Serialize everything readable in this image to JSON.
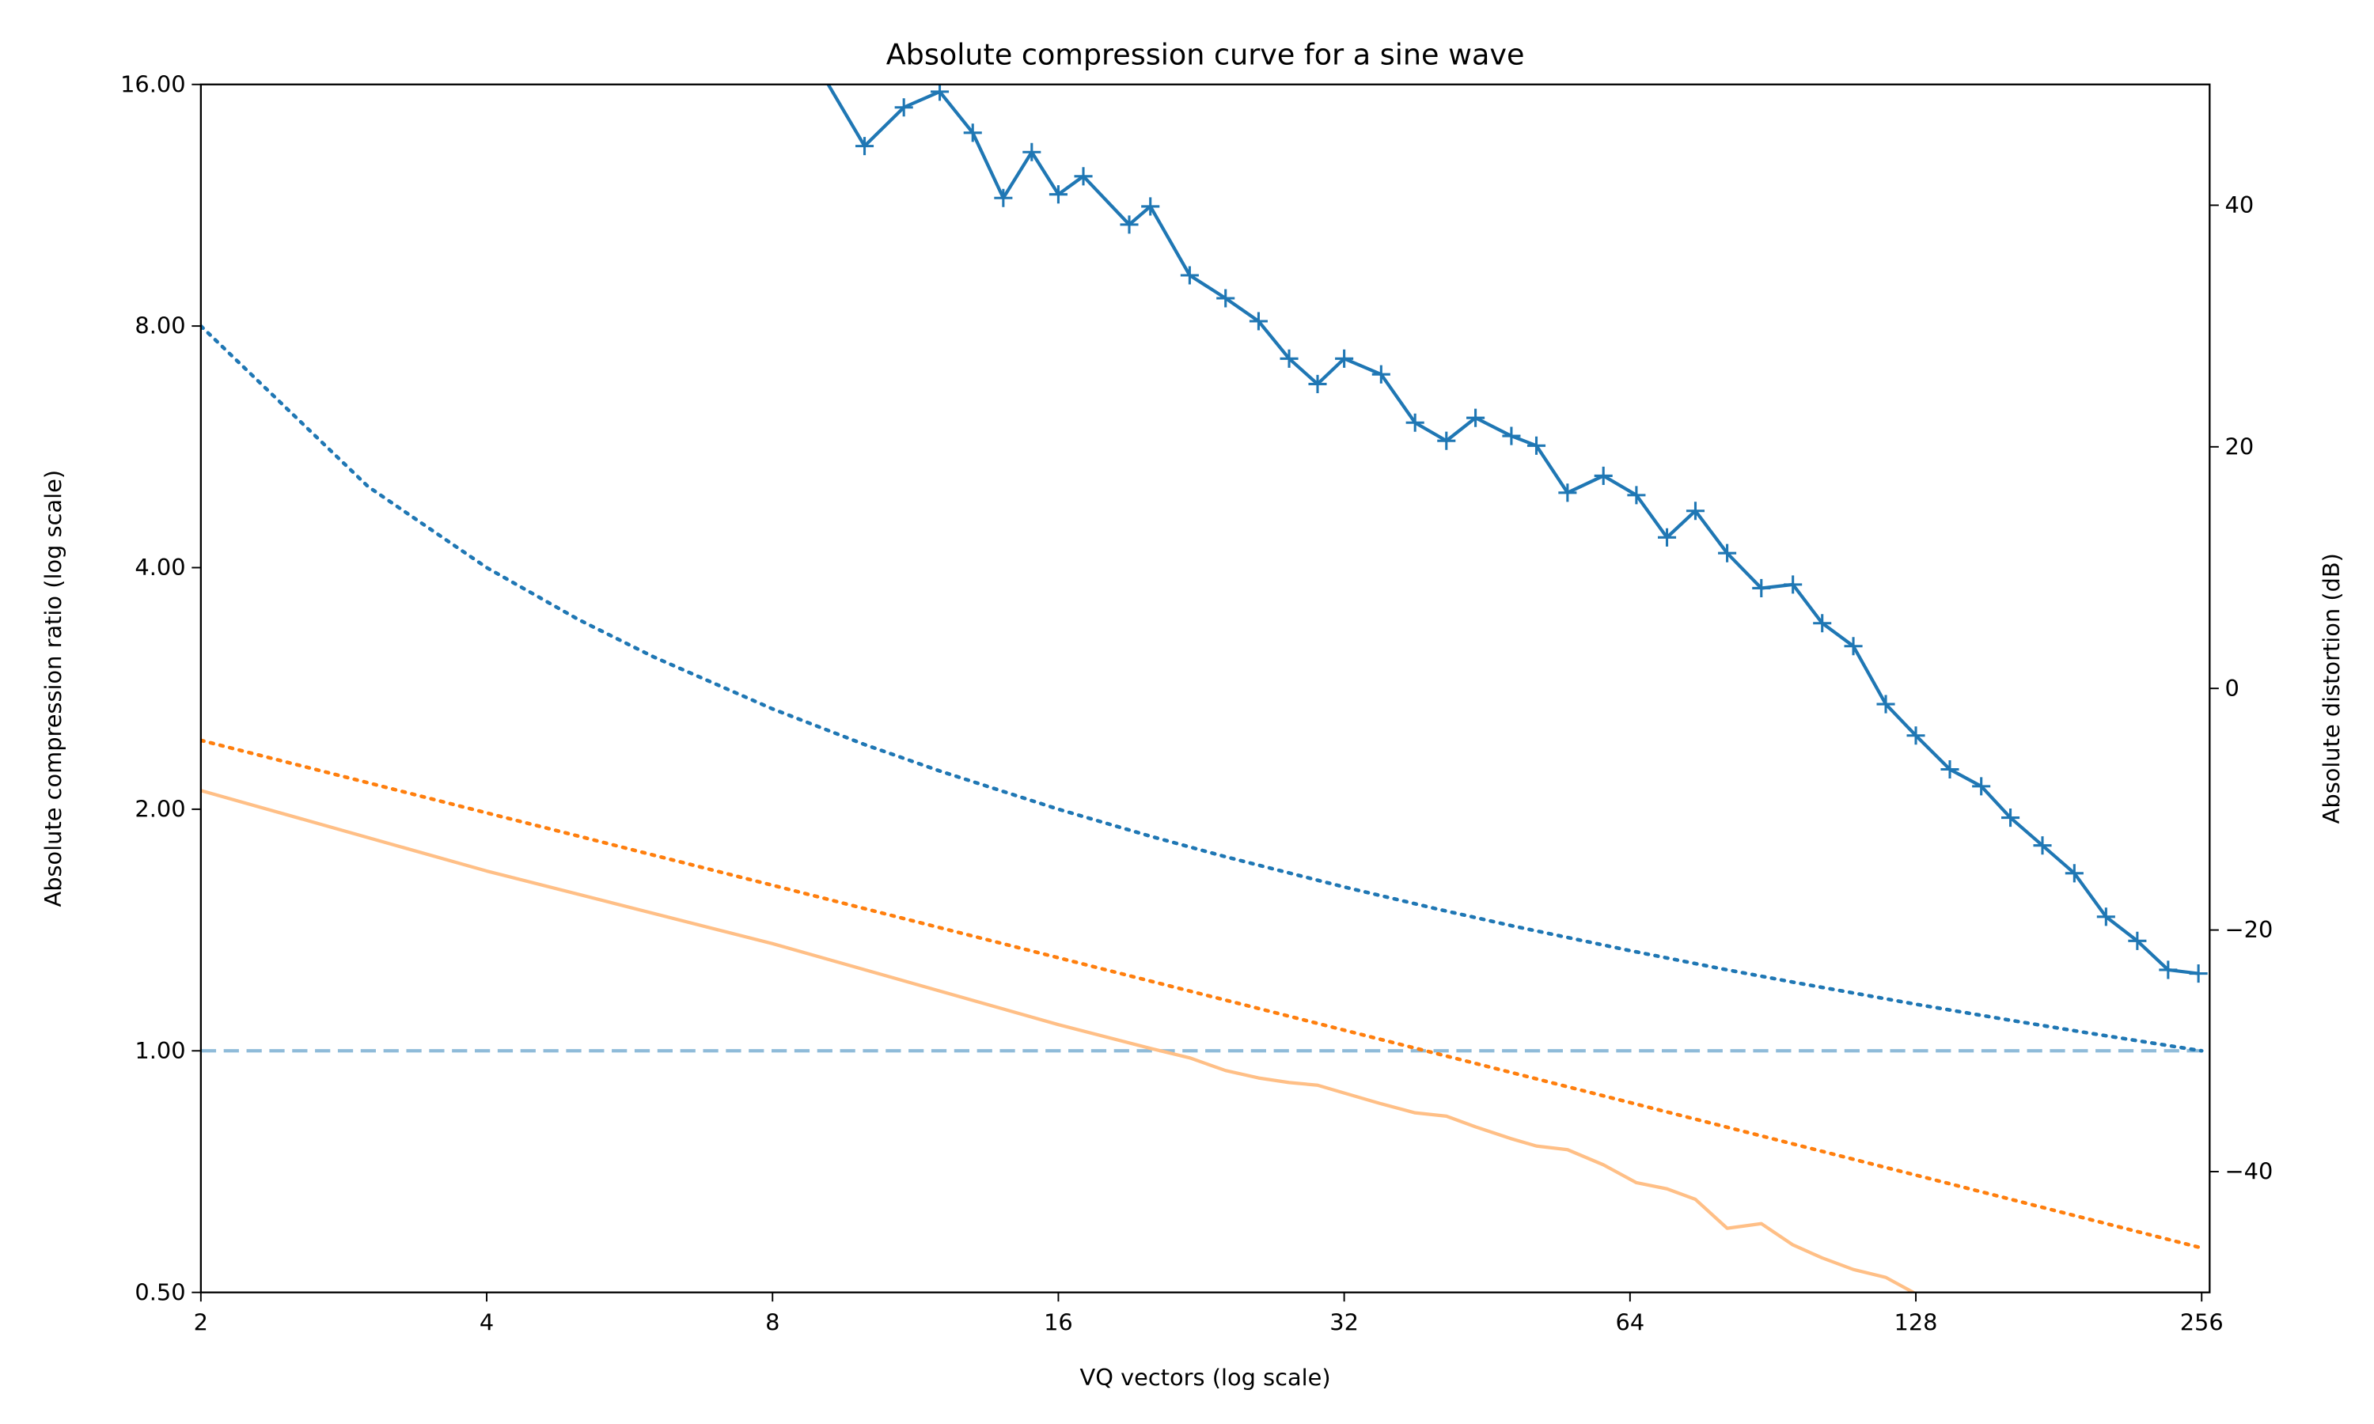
{
  "chart_data": {
    "type": "line",
    "title": "Absolute compression curve  for a sine wave",
    "xlabel": "VQ vectors (log scale)",
    "ylabel": "Absolute compression ratio (log scale)",
    "y2label": "Absolute distortion (dB)",
    "xscale": "log2",
    "yscale": "log2",
    "xlim": [
      2,
      261
    ],
    "xticks": [
      2,
      4,
      8,
      16,
      32,
      64,
      128,
      256
    ],
    "ylim": [
      0.5,
      16
    ],
    "yticks": [
      {
        "value": 0.5,
        "label": "0.50"
      },
      {
        "value": 1,
        "label": "1.00"
      },
      {
        "value": 2,
        "label": "2.00"
      },
      {
        "value": 4,
        "label": "4.00"
      },
      {
        "value": 8,
        "label": "8.00"
      },
      {
        "value": 16,
        "label": "16.00"
      }
    ],
    "y2lim": [
      -50,
      50
    ],
    "y2ticks": [
      {
        "value": -40,
        "label": "−40"
      },
      {
        "value": -20,
        "label": "−20"
      },
      0,
      20,
      40
    ],
    "hline": {
      "value": 1,
      "color": "#8fbbd9",
      "style": "dashed"
    },
    "series": [
      {
        "color": "#1f77b4",
        "style": "solid",
        "marker": "plus",
        "axis": "y2",
        "x": [
          9,
          10,
          11,
          12,
          13,
          14,
          15,
          16,
          17,
          19,
          20,
          22,
          24,
          26,
          28,
          30,
          32,
          35,
          38,
          41,
          44,
          48,
          51,
          55,
          60,
          65,
          70,
          75,
          81,
          88,
          95,
          102,
          110,
          119,
          128,
          139,
          150,
          161,
          174,
          188,
          203,
          219,
          236,
          254
        ],
        "values": [
          51,
          44.9,
          48.1,
          49.4,
          46.0,
          40.6,
          44.4,
          40.9,
          42.4,
          38.4,
          39.9,
          34.2,
          32.3,
          30.4,
          27.3,
          25.2,
          27.3,
          26.0,
          22.0,
          20.5,
          22.4,
          20.9,
          20.1,
          16.2,
          17.6,
          16.0,
          12.5,
          14.7,
          11.2,
          8.3,
          8.6,
          5.4,
          3.5,
          -1.3,
          -3.9,
          -6.7,
          -8.1,
          -10.7,
          -13.0,
          -15.3,
          -18.9,
          -20.9,
          -23.3,
          -23.6
        ]
      },
      {
        "color": "#1f77b4",
        "style": "dotted",
        "axis": "y",
        "x": [
          2,
          3,
          4,
          5,
          6,
          8,
          10,
          12,
          16,
          20,
          24,
          32,
          40,
          48,
          64,
          80,
          96,
          128,
          160,
          192,
          256
        ],
        "values": [
          8,
          5.047,
          4,
          3.445,
          3.095,
          2.667,
          2.408,
          2.232,
          2,
          1.851,
          1.745,
          1.6,
          1.503,
          1.432,
          1.333,
          1.265,
          1.215,
          1.143,
          1.093,
          1.055,
          1
        ]
      },
      {
        "color": "#ff7f0e",
        "style": "dotted",
        "axis": "y",
        "x": [
          2,
          4,
          8,
          16,
          32,
          64,
          128,
          256
        ],
        "values": [
          2.437,
          1.979,
          1.608,
          1.306,
          1.061,
          0.862,
          0.7,
          0.568
        ]
      },
      {
        "color": "#ffbf86",
        "style": "solid",
        "axis": "y",
        "x": [
          2,
          4,
          8,
          16,
          20,
          22,
          24,
          26,
          28,
          30,
          32,
          35,
          38,
          41,
          44,
          48,
          51,
          55,
          60,
          65,
          70,
          75,
          81,
          88,
          95,
          102,
          110,
          119,
          128,
          139
        ],
        "values": [
          2.11,
          1.675,
          1.36,
          1.078,
          1.007,
          0.98,
          0.945,
          0.925,
          0.913,
          0.906,
          0.886,
          0.859,
          0.837,
          0.829,
          0.804,
          0.777,
          0.761,
          0.753,
          0.721,
          0.685,
          0.673,
          0.653,
          0.601,
          0.609,
          0.573,
          0.552,
          0.534,
          0.522,
          0.498,
          0.47
        ]
      }
    ]
  }
}
